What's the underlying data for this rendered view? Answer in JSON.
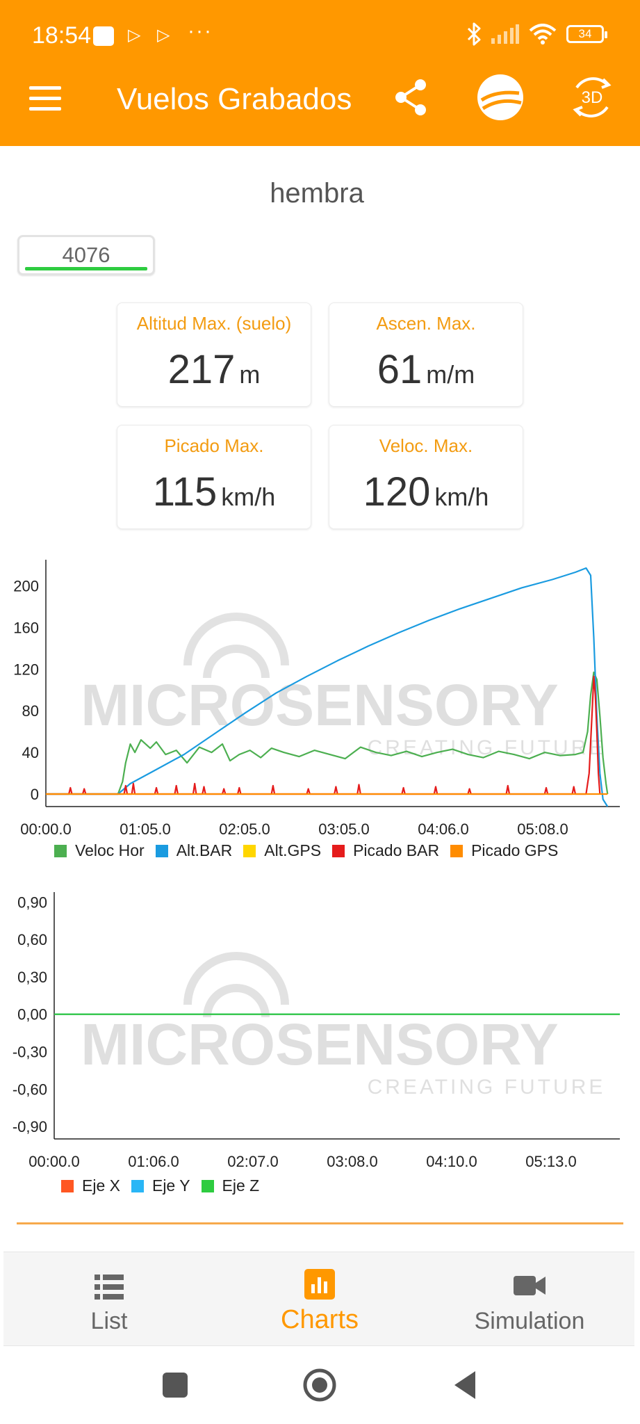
{
  "status_bar": {
    "time": "18:54",
    "battery": "34"
  },
  "app_bar": {
    "title": "Vuelos Grabados",
    "three_d_label": "3D"
  },
  "flight": {
    "name": "hembra",
    "id": "4076"
  },
  "stats": [
    {
      "label": "Altitud Max. (suelo)",
      "value": "217",
      "unit": "m"
    },
    {
      "label": "Ascen. Max.",
      "value": "61",
      "unit": "m/m"
    },
    {
      "label": "Picado Max.",
      "value": "115",
      "unit": "km/h"
    },
    {
      "label": "Veloc. Max.",
      "value": "120",
      "unit": "km/h"
    }
  ],
  "watermark": {
    "brand": "MICROSENSORY",
    "tagline": "CREATING FUTURE"
  },
  "chart_data": [
    {
      "type": "line",
      "x_ticks": [
        "00:00.0",
        "01:05.0",
        "02:05.0",
        "03:05.0",
        "04:06.0",
        "05:08.0"
      ],
      "y_ticks": [
        "200",
        "160",
        "120",
        "80",
        "40",
        "0"
      ],
      "ylim": [
        -12,
        225
      ],
      "xlim": [
        0,
        374
      ],
      "grid": false,
      "legend_position": "bottom",
      "series": [
        {
          "name": "Veloc Hor",
          "color": "#4caf50",
          "points": [
            [
              0,
              0
            ],
            [
              47,
              0
            ],
            [
              50,
              12
            ],
            [
              52,
              30
            ],
            [
              55,
              48
            ],
            [
              58,
              40
            ],
            [
              62,
              52
            ],
            [
              68,
              44
            ],
            [
              72,
              50
            ],
            [
              78,
              38
            ],
            [
              85,
              42
            ],
            [
              92,
              30
            ],
            [
              100,
              45
            ],
            [
              108,
              40
            ],
            [
              115,
              48
            ],
            [
              120,
              32
            ],
            [
              126,
              38
            ],
            [
              133,
              42
            ],
            [
              140,
              35
            ],
            [
              147,
              44
            ],
            [
              155,
              40
            ],
            [
              165,
              36
            ],
            [
              175,
              42
            ],
            [
              185,
              38
            ],
            [
              195,
              34
            ],
            [
              205,
              45
            ],
            [
              215,
              40
            ],
            [
              225,
              37
            ],
            [
              235,
              41
            ],
            [
              245,
              36
            ],
            [
              255,
              40
            ],
            [
              265,
              43
            ],
            [
              275,
              38
            ],
            [
              285,
              35
            ],
            [
              295,
              41
            ],
            [
              305,
              38
            ],
            [
              315,
              34
            ],
            [
              325,
              40
            ],
            [
              335,
              37
            ],
            [
              345,
              38
            ],
            [
              350,
              40
            ],
            [
              353,
              60
            ],
            [
              355,
              95
            ],
            [
              357,
              117
            ],
            [
              359,
              110
            ],
            [
              361,
              75
            ],
            [
              363,
              35
            ],
            [
              365,
              10
            ],
            [
              366,
              0
            ]
          ]
        },
        {
          "name": "Alt.BAR",
          "color": "#1a9be0",
          "points": [
            [
              0,
              0
            ],
            [
              47,
              0
            ],
            [
              55,
              10
            ],
            [
              70,
              22
            ],
            [
              90,
              38
            ],
            [
              110,
              58
            ],
            [
              130,
              78
            ],
            [
              150,
              97
            ],
            [
              170,
              113
            ],
            [
              190,
              128
            ],
            [
              210,
              142
            ],
            [
              230,
              155
            ],
            [
              250,
              167
            ],
            [
              270,
              178
            ],
            [
              290,
              188
            ],
            [
              310,
              198
            ],
            [
              330,
              206
            ],
            [
              345,
              213
            ],
            [
              352,
              217
            ],
            [
              355,
              210
            ],
            [
              357,
              150
            ],
            [
              359,
              75
            ],
            [
              361,
              20
            ],
            [
              363,
              -5
            ],
            [
              366,
              -12
            ]
          ]
        },
        {
          "name": "Alt.GPS",
          "color": "#ffd600",
          "points": []
        },
        {
          "name": "Picado BAR",
          "color": "#e51c1c",
          "points": [
            [
              0,
              0
            ],
            [
              15,
              0
            ],
            [
              16,
              6
            ],
            [
              17,
              0
            ],
            [
              24,
              0
            ],
            [
              25,
              5
            ],
            [
              26,
              0
            ],
            [
              51,
              0
            ],
            [
              52,
              8
            ],
            [
              53,
              0
            ],
            [
              56,
              0
            ],
            [
              57,
              10
            ],
            [
              58,
              0
            ],
            [
              71,
              0
            ],
            [
              72,
              6
            ],
            [
              73,
              0
            ],
            [
              84,
              0
            ],
            [
              85,
              8
            ],
            [
              86,
              0
            ],
            [
              96,
              0
            ],
            [
              97,
              10
            ],
            [
              98,
              0
            ],
            [
              102,
              0
            ],
            [
              103,
              7
            ],
            [
              104,
              0
            ],
            [
              115,
              0
            ],
            [
              116,
              5
            ],
            [
              117,
              0
            ],
            [
              125,
              0
            ],
            [
              126,
              6
            ],
            [
              127,
              0
            ],
            [
              147,
              0
            ],
            [
              148,
              8
            ],
            [
              149,
              0
            ],
            [
              170,
              0
            ],
            [
              171,
              5
            ],
            [
              172,
              0
            ],
            [
              188,
              0
            ],
            [
              189,
              7
            ],
            [
              190,
              0
            ],
            [
              203,
              0
            ],
            [
              204,
              9
            ],
            [
              205,
              0
            ],
            [
              232,
              0
            ],
            [
              233,
              6
            ],
            [
              234,
              0
            ],
            [
              253,
              0
            ],
            [
              254,
              7
            ],
            [
              255,
              0
            ],
            [
              275,
              0
            ],
            [
              276,
              5
            ],
            [
              277,
              0
            ],
            [
              300,
              0
            ],
            [
              301,
              8
            ],
            [
              302,
              0
            ],
            [
              325,
              0
            ],
            [
              326,
              6
            ],
            [
              327,
              0
            ],
            [
              343,
              0
            ],
            [
              344,
              7
            ],
            [
              345,
              0
            ],
            [
              352,
              0
            ],
            [
              354,
              20
            ],
            [
              356,
              80
            ],
            [
              357,
              113
            ],
            [
              358,
              95
            ],
            [
              359,
              60
            ],
            [
              360,
              20
            ],
            [
              361,
              0
            ]
          ]
        },
        {
          "name": "Picado GPS",
          "color": "#ff8c00",
          "points": [
            [
              0,
              0
            ],
            [
              366,
              0
            ]
          ]
        }
      ]
    },
    {
      "type": "line",
      "x_ticks": [
        "00:00.0",
        "01:06.0",
        "02:07.0",
        "03:08.0",
        "04:10.0",
        "05:13.0"
      ],
      "y_ticks": [
        "0,90",
        "0,60",
        "0,30",
        "0,00",
        "-0,30",
        "-0,60",
        "-0,90"
      ],
      "ylim": [
        -1.0,
        0.98
      ],
      "xlim": [
        0,
        374
      ],
      "grid": false,
      "legend_position": "bottom",
      "series": [
        {
          "name": "Eje X",
          "color": "#ff5722",
          "points": [
            [
              0,
              0
            ],
            [
              374,
              0
            ]
          ]
        },
        {
          "name": "Eje Y",
          "color": "#29b6f6",
          "points": [
            [
              0,
              0
            ],
            [
              374,
              0
            ]
          ]
        },
        {
          "name": "Eje Z",
          "color": "#2ecc40",
          "points": [
            [
              0,
              0
            ],
            [
              374,
              0
            ]
          ]
        }
      ]
    }
  ],
  "bottom_nav": {
    "items": [
      {
        "label": "List",
        "active": false
      },
      {
        "label": "Charts",
        "active": true
      },
      {
        "label": "Simulation",
        "active": false
      }
    ]
  }
}
